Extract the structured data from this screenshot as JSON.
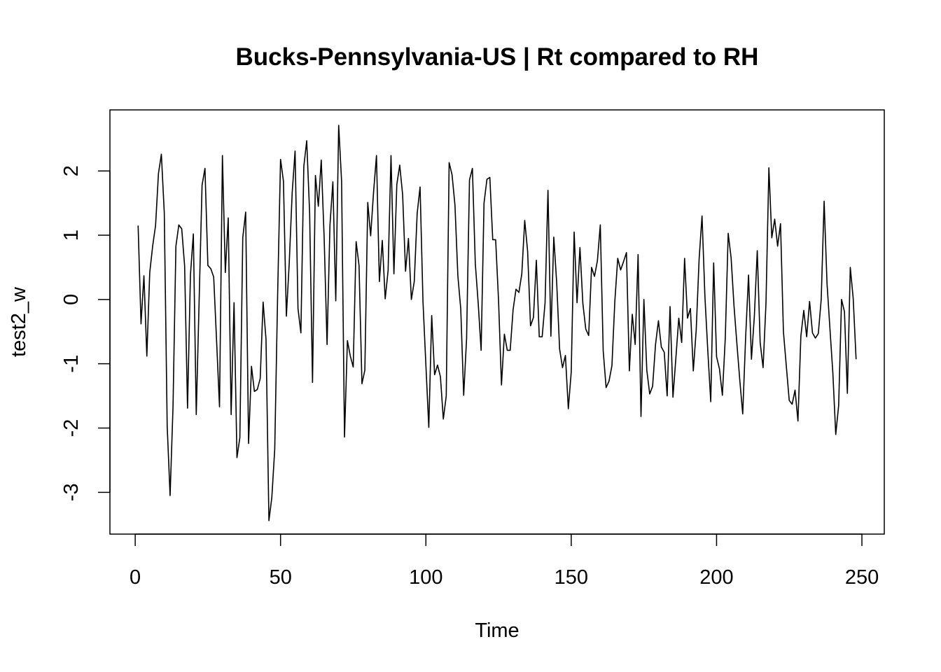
{
  "chart_data": {
    "type": "line",
    "title": "Bucks-Pennsylvania-US | Rt compared to RH",
    "xlabel": "Time",
    "ylabel": "test2_w",
    "xlim": [
      -8.7,
      257.7
    ],
    "ylim": [
      -3.65,
      2.95
    ],
    "xticks": [
      0,
      50,
      100,
      150,
      200,
      250
    ],
    "yticks": [
      -3,
      -2,
      -1,
      0,
      1,
      2
    ],
    "xtick_labels": [
      "0",
      "50",
      "100",
      "150",
      "200",
      "250"
    ],
    "ytick_labels": [
      "-3",
      "-2",
      "-1",
      "0",
      "1",
      "2"
    ],
    "grid": false,
    "legend": "none",
    "line_color": "#000000",
    "series": [
      {
        "x_start": 1,
        "values": [
          1.15,
          -0.38,
          0.37,
          -0.88,
          0.42,
          0.83,
          1.15,
          1.96,
          2.26,
          1.35,
          -1.97,
          -3.05,
          -1.68,
          0.83,
          1.16,
          1.1,
          0.52,
          -1.69,
          0.38,
          1.02,
          -1.79,
          0.0,
          1.78,
          2.04,
          0.53,
          0.48,
          0.35,
          -0.65,
          -1.67,
          2.24,
          0.42,
          1.27,
          -1.79,
          -0.05,
          -2.46,
          -2.15,
          0.96,
          1.36,
          -2.24,
          -1.04,
          -1.43,
          -1.4,
          -1.23,
          -0.04,
          -0.62,
          -3.44,
          -3.08,
          -2.33,
          0.08,
          2.18,
          1.84,
          -0.26,
          0.58,
          1.66,
          2.31,
          -0.14,
          -0.52,
          2.07,
          2.47,
          1.35,
          -1.29,
          1.93,
          1.45,
          2.17,
          0.96,
          -0.7,
          1.16,
          1.83,
          -0.02,
          2.71,
          1.84,
          -2.14,
          -0.64,
          -0.88,
          -1.05,
          0.9,
          0.53,
          -1.31,
          -1.1,
          1.51,
          0.99,
          1.67,
          2.24,
          0.28,
          0.92,
          0.01,
          0.45,
          2.24,
          0.4,
          1.79,
          2.09,
          1.63,
          0.44,
          0.95,
          0.0,
          0.28,
          1.34,
          1.75,
          -0.03,
          -1.02,
          -1.99,
          -0.25,
          -1.17,
          -1.02,
          -1.2,
          -1.86,
          -1.5,
          2.13,
          1.94,
          1.47,
          0.37,
          -0.15,
          -1.49,
          -0.61,
          1.86,
          2.04,
          0.56,
          -0.06,
          -0.79,
          1.5,
          1.87,
          1.9,
          0.93,
          0.93,
          -0.02,
          -1.33,
          -0.54,
          -0.79,
          -0.79,
          -0.16,
          0.16,
          0.11,
          0.4,
          1.23,
          0.75,
          -0.41,
          -0.28,
          0.61,
          -0.58,
          -0.58,
          -0.05,
          1.7,
          -0.57,
          0.97,
          0.26,
          -0.77,
          -1.06,
          -0.87,
          -1.7,
          -1.13,
          1.05,
          -0.05,
          0.81,
          -0.06,
          -0.46,
          -0.56,
          0.5,
          0.36,
          0.6,
          1.16,
          -0.8,
          -1.37,
          -1.27,
          -1.03,
          -0.03,
          0.64,
          0.46,
          0.59,
          0.73,
          -1.11,
          -0.23,
          -0.7,
          0.7,
          -1.82,
          0.0,
          -1.1,
          -1.47,
          -1.35,
          -0.7,
          -0.33,
          -0.74,
          -0.82,
          -1.5,
          -0.11,
          -1.52,
          -0.91,
          -0.29,
          -0.67,
          0.64,
          -0.29,
          -0.14,
          -1.11,
          -0.47,
          0.63,
          1.3,
          0.04,
          -0.81,
          -1.59,
          0.57,
          -0.89,
          -1.08,
          -1.49,
          -0.6,
          1.03,
          0.65,
          -0.1,
          -0.69,
          -1.26,
          -1.78,
          -0.59,
          0.38,
          -0.93,
          -0.26,
          0.76,
          -0.67,
          -1.06,
          -0.06,
          2.05,
          0.96,
          1.25,
          0.83,
          1.18,
          -0.5,
          -1.04,
          -1.57,
          -1.63,
          -1.41,
          -1.89,
          -0.57,
          -0.17,
          -0.58,
          -0.03,
          -0.52,
          -0.6,
          -0.53,
          0.0,
          1.53,
          0.25,
          -0.45,
          -1.14,
          -2.1,
          -1.65,
          0.0,
          -0.19,
          -1.46,
          0.5,
          0.02,
          -0.93
        ]
      }
    ]
  }
}
